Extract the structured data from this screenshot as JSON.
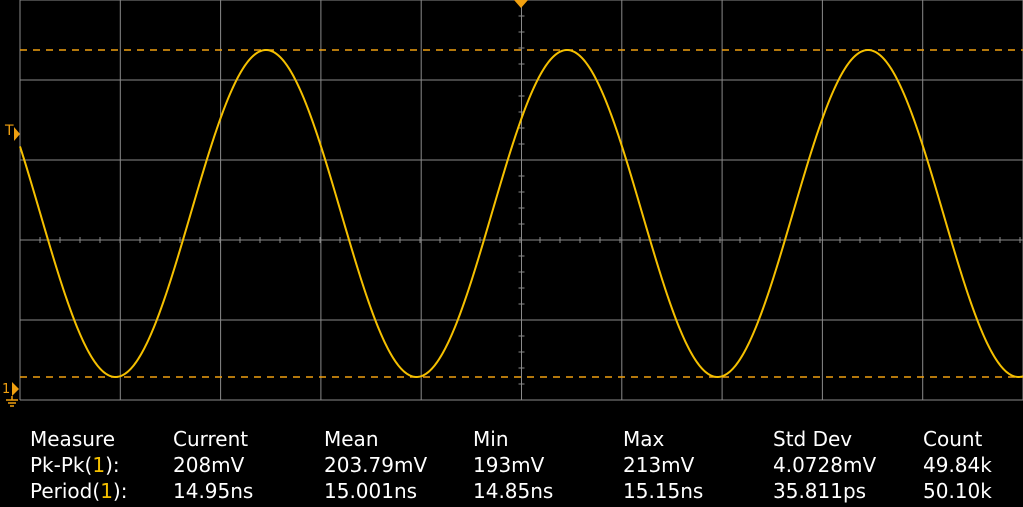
{
  "scope": {
    "trace_color": "#f5c000",
    "marker_color": "#f0a010",
    "grid_color": "#8a8a8a",
    "trigger_marker": "T",
    "channel_marker": "1"
  },
  "measurements": {
    "header": {
      "label": "Measure",
      "current": "Current",
      "mean": "Mean",
      "min": "Min",
      "max": "Max",
      "std_dev": "Std Dev",
      "count": "Count"
    },
    "rows": [
      {
        "name": "Pk-Pk",
        "channel": "1",
        "current": "208mV",
        "mean": "203.79mV",
        "min": "193mV",
        "max": "213mV",
        "std_dev": "4.0728mV",
        "count": "49.84k"
      },
      {
        "name": "Period",
        "channel": "1",
        "current": "14.95ns",
        "mean": "15.001ns",
        "min": "14.85ns",
        "max": "15.15ns",
        "std_dev": "35.811ps",
        "count": "50.10k"
      }
    ]
  }
}
